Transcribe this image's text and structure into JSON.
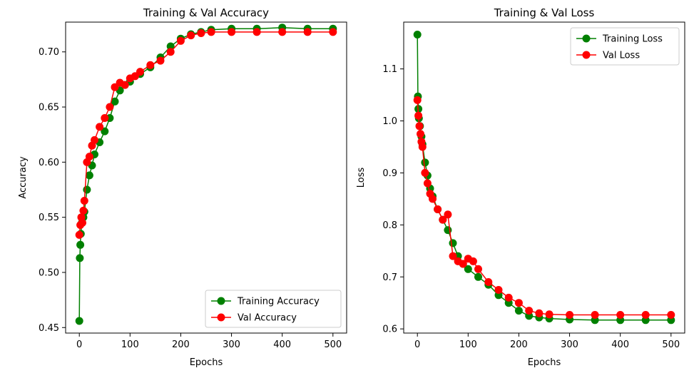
{
  "chart_data": [
    {
      "type": "line",
      "title": "Training & Val Accuracy",
      "xlabel": "Epochs",
      "ylabel": "Accuracy",
      "xlim": [
        -27,
        527
      ],
      "ylim": [
        0.445,
        0.727
      ],
      "xticks": [
        0,
        100,
        200,
        300,
        400,
        500
      ],
      "yticks": [
        0.45,
        0.5,
        0.55,
        0.6,
        0.65,
        0.7
      ],
      "yticks_labels": [
        "0.45",
        "0.50",
        "0.55",
        "0.60",
        "0.65",
        "0.70"
      ],
      "legend_position": "lower-right",
      "grid": false,
      "series": [
        {
          "name": "Training Accuracy",
          "color": "#008000",
          "x": [
            0,
            1,
            2,
            3,
            5,
            8,
            10,
            15,
            20,
            25,
            30,
            40,
            50,
            60,
            70,
            80,
            90,
            100,
            120,
            140,
            160,
            180,
            200,
            220,
            240,
            260,
            300,
            350,
            400,
            450,
            500
          ],
          "y": [
            0.456,
            0.513,
            0.525,
            0.535,
            0.545,
            0.55,
            0.555,
            0.575,
            0.588,
            0.597,
            0.607,
            0.618,
            0.628,
            0.64,
            0.655,
            0.665,
            0.67,
            0.673,
            0.68,
            0.686,
            0.695,
            0.705,
            0.712,
            0.716,
            0.718,
            0.72,
            0.721,
            0.721,
            0.722,
            0.721,
            0.721
          ]
        },
        {
          "name": "Val Accuracy",
          "color": "#ff0000",
          "x": [
            0,
            2,
            4,
            6,
            8,
            10,
            15,
            20,
            25,
            30,
            40,
            50,
            60,
            70,
            80,
            90,
            100,
            110,
            120,
            140,
            160,
            180,
            200,
            220,
            240,
            260,
            300,
            350,
            400,
            450,
            500
          ],
          "y": [
            0.534,
            0.543,
            0.55,
            0.545,
            0.556,
            0.565,
            0.6,
            0.605,
            0.615,
            0.62,
            0.632,
            0.64,
            0.65,
            0.668,
            0.672,
            0.67,
            0.676,
            0.678,
            0.682,
            0.688,
            0.692,
            0.7,
            0.71,
            0.715,
            0.717,
            0.718,
            0.718,
            0.718,
            0.718,
            0.718,
            0.718
          ]
        }
      ]
    },
    {
      "type": "line",
      "title": "Training & Val Loss",
      "xlabel": "Epochs",
      "ylabel": "Loss",
      "xlim": [
        -27,
        527
      ],
      "ylim": [
        0.592,
        1.19
      ],
      "xticks": [
        0,
        100,
        200,
        300,
        400,
        500
      ],
      "yticks": [
        0.6,
        0.7,
        0.8,
        0.9,
        1.0,
        1.1
      ],
      "yticks_labels": [
        "0.6",
        "0.7",
        "0.8",
        "0.9",
        "1.0",
        "1.1"
      ],
      "legend_position": "upper-right",
      "grid": false,
      "series": [
        {
          "name": "Training Loss",
          "color": "#008000",
          "x": [
            0,
            1,
            2,
            3,
            5,
            8,
            10,
            15,
            20,
            25,
            30,
            40,
            50,
            60,
            70,
            80,
            90,
            100,
            120,
            140,
            160,
            180,
            200,
            220,
            240,
            260,
            300,
            350,
            400,
            450,
            500
          ],
          "y": [
            1.166,
            1.047,
            1.023,
            1.005,
            0.99,
            0.97,
            0.955,
            0.92,
            0.895,
            0.87,
            0.855,
            0.83,
            0.81,
            0.79,
            0.765,
            0.74,
            0.725,
            0.715,
            0.7,
            0.685,
            0.665,
            0.65,
            0.635,
            0.625,
            0.622,
            0.62,
            0.618,
            0.617,
            0.617,
            0.617,
            0.617
          ]
        },
        {
          "name": "Val Loss",
          "color": "#ff0000",
          "x": [
            0,
            2,
            4,
            6,
            8,
            10,
            15,
            20,
            25,
            30,
            40,
            50,
            60,
            70,
            80,
            90,
            100,
            110,
            120,
            140,
            160,
            180,
            200,
            220,
            240,
            260,
            300,
            350,
            400,
            450,
            500
          ],
          "y": [
            1.04,
            1.01,
            0.99,
            0.975,
            0.96,
            0.95,
            0.9,
            0.88,
            0.86,
            0.85,
            0.83,
            0.81,
            0.82,
            0.74,
            0.73,
            0.725,
            0.735,
            0.73,
            0.715,
            0.69,
            0.675,
            0.66,
            0.65,
            0.635,
            0.63,
            0.628,
            0.627,
            0.627,
            0.627,
            0.627,
            0.627
          ]
        }
      ]
    }
  ]
}
